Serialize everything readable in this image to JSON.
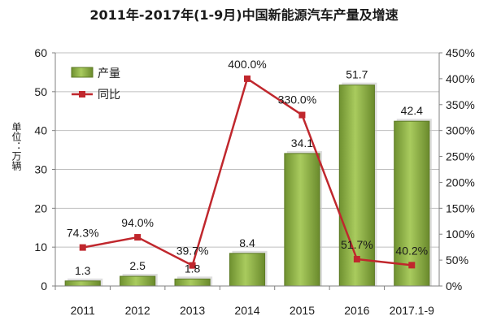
{
  "chart_data": {
    "type": "bar",
    "title": "2011年-2017年(1-9月)中国新能源汽车产量及增速",
    "ylabel": "单位：万辆",
    "categories": [
      "2011",
      "2012",
      "2013",
      "2014",
      "2015",
      "2016",
      "2017.1-9"
    ],
    "ylim": [
      0,
      60
    ],
    "yticks": [
      "0",
      "10",
      "20",
      "30",
      "40",
      "50",
      "60"
    ],
    "y2lim": [
      0,
      450
    ],
    "y2ticks": [
      "0%",
      "50%",
      "100%",
      "150%",
      "200%",
      "250%",
      "300%",
      "350%",
      "400%",
      "450%"
    ],
    "grid": true,
    "legend_position": "top-left",
    "series": [
      {
        "name": "产量",
        "kind": "bar",
        "axis": "left",
        "color": "#8cb043",
        "values": [
          1.3,
          2.5,
          1.8,
          8.4,
          34.1,
          51.7,
          42.4
        ],
        "labels": [
          "1.3",
          "2.5",
          "1.8",
          "8.4",
          "34.1",
          "51.7",
          "42.4"
        ]
      },
      {
        "name": "同比",
        "kind": "line",
        "axis": "right",
        "color": "#c0272d",
        "values": [
          74.3,
          94.0,
          39.7,
          400.0,
          330.0,
          51.7,
          40.2
        ],
        "labels": [
          "74.3%",
          "94.0%",
          "39.7%",
          "400.0%",
          "330.0%",
          "51.7%",
          "40.2%"
        ]
      }
    ]
  }
}
